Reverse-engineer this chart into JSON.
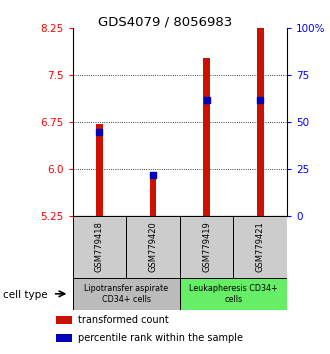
{
  "title": "GDS4079 / 8056983",
  "samples": [
    "GSM779418",
    "GSM779420",
    "GSM779419",
    "GSM779421"
  ],
  "transformed_counts": [
    6.72,
    5.93,
    7.78,
    8.63
  ],
  "percentile_ranks": [
    45,
    22,
    62,
    62
  ],
  "y_min": 5.25,
  "y_max": 8.25,
  "y_ticks_left": [
    5.25,
    6.0,
    6.75,
    7.5,
    8.25
  ],
  "y_ticks_right_vals": [
    0,
    25,
    50,
    75,
    100
  ],
  "y_ticks_right_labels": [
    "0",
    "25",
    "50",
    "75",
    "100%"
  ],
  "cell_types": [
    {
      "label": "Lipotransfer aspirate\nCD34+ cells",
      "samples": [
        0,
        1
      ],
      "color": "#bbbbbb"
    },
    {
      "label": "Leukapheresis CD34+\ncells",
      "samples": [
        2,
        3
      ],
      "color": "#66ee66"
    }
  ],
  "bar_color": "#cc1100",
  "dot_color": "#0000bb",
  "bar_width": 0.12,
  "dot_size": 25,
  "legend_items": [
    {
      "color": "#cc1100",
      "label": "transformed count"
    },
    {
      "color": "#0000bb",
      "label": "percentile rank within the sample"
    }
  ]
}
